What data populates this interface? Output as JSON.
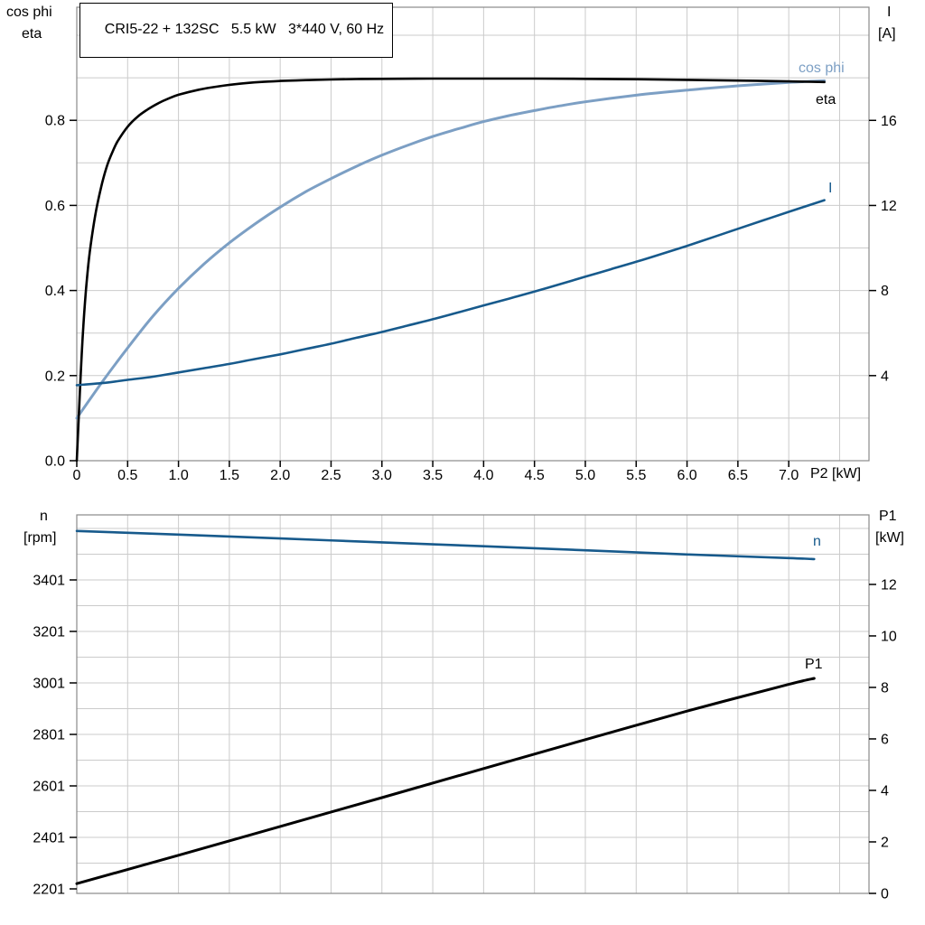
{
  "title": "CRI5-22 + 132SC   5.5 kW   3*440 V, 60 Hz",
  "colors": {
    "grid": "#cbcbcb",
    "frame": "#8a8a8a",
    "tick": "#000000",
    "text": "#000000",
    "cos_phi": "#7c9fc4",
    "eta": "#000000",
    "current": "#175a8c",
    "speed": "#175a8c",
    "p1": "#000000",
    "background": "#ffffff"
  },
  "chart_data": [
    {
      "type": "line",
      "panel": "top",
      "title": "CRI5-22 + 132SC   5.5 kW   3*440 V, 60 Hz",
      "x_axis": {
        "label": "P2 [kW]",
        "range": [
          0,
          7.789
        ],
        "grid_values": [
          0.5,
          1,
          1.5,
          2,
          2.5,
          3,
          3.5,
          4,
          4.5,
          5,
          5.5,
          6,
          6.5,
          7,
          7.5
        ],
        "tick_values": [
          0,
          0.5,
          1,
          1.5,
          2,
          2.5,
          3,
          3.5,
          4,
          4.5,
          5,
          5.5,
          6,
          6.5,
          7
        ],
        "tick_labels": [
          "0",
          "0.5",
          "1.0",
          "1.5",
          "2.0",
          "2.5",
          "3.0",
          "3.5",
          "4.0",
          "4.5",
          "5.0",
          "5.5",
          "6.0",
          "6.5",
          "7.0"
        ],
        "show_tick_labels": true
      },
      "y_left": {
        "title_lines": [
          "cos phi",
          "eta"
        ],
        "range": [
          0,
          1.0658
        ],
        "grid_values": [
          0.1,
          0.2,
          0.3,
          0.4,
          0.5,
          0.6,
          0.7,
          0.8,
          0.9,
          1.0
        ],
        "tick_values": [
          0,
          0.2,
          0.4,
          0.6,
          0.8
        ],
        "tick_labels": [
          "0.0",
          "0.2",
          "0.4",
          "0.6",
          "0.8"
        ]
      },
      "y_right": {
        "title_lines": [
          "I",
          "[A]"
        ],
        "range": [
          0,
          21.32
        ],
        "tick_values": [
          4,
          8,
          12,
          16
        ],
        "tick_labels": [
          "4",
          "8",
          "12",
          "16"
        ]
      },
      "series": [
        {
          "name": "cos phi",
          "axis": "left",
          "color": "#7c9fc4",
          "width": 3,
          "points": [
            [
              0,
              0.1
            ],
            [
              0.25,
              0.185
            ],
            [
              0.5,
              0.265
            ],
            [
              0.75,
              0.34
            ],
            [
              1.0,
              0.405
            ],
            [
              1.25,
              0.462
            ],
            [
              1.5,
              0.512
            ],
            [
              1.75,
              0.556
            ],
            [
              2.0,
              0.596
            ],
            [
              2.25,
              0.632
            ],
            [
              2.5,
              0.663
            ],
            [
              2.75,
              0.692
            ],
            [
              3.0,
              0.718
            ],
            [
              3.25,
              0.741
            ],
            [
              3.5,
              0.762
            ],
            [
              3.75,
              0.78
            ],
            [
              4.0,
              0.797
            ],
            [
              4.25,
              0.811
            ],
            [
              4.5,
              0.823
            ],
            [
              4.75,
              0.834
            ],
            [
              5.0,
              0.8435
            ],
            [
              5.5,
              0.859
            ],
            [
              6.0,
              0.871
            ],
            [
              6.5,
              0.881
            ],
            [
              7.0,
              0.889
            ],
            [
              7.35,
              0.893
            ]
          ]
        },
        {
          "name": "eta",
          "axis": "left",
          "color": "#000000",
          "width": 2.6,
          "points": [
            [
              0,
              0
            ],
            [
              0.03,
              0.16
            ],
            [
              0.06,
              0.3
            ],
            [
              0.09,
              0.4
            ],
            [
              0.12,
              0.475
            ],
            [
              0.16,
              0.545
            ],
            [
              0.2,
              0.6
            ],
            [
              0.25,
              0.653
            ],
            [
              0.3,
              0.695
            ],
            [
              0.35,
              0.725
            ],
            [
              0.4,
              0.75
            ],
            [
              0.5,
              0.785
            ],
            [
              0.6,
              0.809
            ],
            [
              0.7,
              0.826
            ],
            [
              0.8,
              0.84
            ],
            [
              0.9,
              0.851
            ],
            [
              1.0,
              0.86
            ],
            [
              1.2,
              0.872
            ],
            [
              1.4,
              0.88
            ],
            [
              1.6,
              0.886
            ],
            [
              1.8,
              0.89
            ],
            [
              2.0,
              0.8925
            ],
            [
              2.25,
              0.8945
            ],
            [
              2.5,
              0.896
            ],
            [
              2.75,
              0.897
            ],
            [
              3.0,
              0.8975
            ],
            [
              3.5,
              0.898
            ],
            [
              4.0,
              0.898
            ],
            [
              4.5,
              0.898
            ],
            [
              5.0,
              0.8975
            ],
            [
              5.5,
              0.8965
            ],
            [
              6.0,
              0.895
            ],
            [
              6.5,
              0.8935
            ],
            [
              7.0,
              0.8915
            ],
            [
              7.35,
              0.89
            ]
          ]
        },
        {
          "name": "I",
          "axis": "right",
          "color": "#175a8c",
          "width": 2.6,
          "points": [
            [
              0,
              3.55
            ],
            [
              0.25,
              3.65
            ],
            [
              0.5,
              3.8
            ],
            [
              0.75,
              3.95
            ],
            [
              1.0,
              4.15
            ],
            [
              1.25,
              4.35
            ],
            [
              1.5,
              4.55
            ],
            [
              1.75,
              4.78
            ],
            [
              2.0,
              5.0
            ],
            [
              2.25,
              5.25
            ],
            [
              2.5,
              5.5
            ],
            [
              2.75,
              5.78
            ],
            [
              3.0,
              6.05
            ],
            [
              3.25,
              6.35
            ],
            [
              3.5,
              6.65
            ],
            [
              3.75,
              6.97
            ],
            [
              4.0,
              7.3
            ],
            [
              4.25,
              7.62
            ],
            [
              4.5,
              7.95
            ],
            [
              4.75,
              8.3
            ],
            [
              5.0,
              8.65
            ],
            [
              5.25,
              9.0
            ],
            [
              5.5,
              9.35
            ],
            [
              5.75,
              9.72
            ],
            [
              6.0,
              10.1
            ],
            [
              6.25,
              10.5
            ],
            [
              6.5,
              10.9
            ],
            [
              6.75,
              11.3
            ],
            [
              7.0,
              11.7
            ],
            [
              7.35,
              12.25
            ]
          ]
        }
      ]
    },
    {
      "type": "line",
      "panel": "bottom",
      "x_axis": {
        "label": "",
        "range": [
          0,
          7.789
        ],
        "grid_values": [
          0.5,
          1,
          1.5,
          2,
          2.5,
          3,
          3.5,
          4,
          4.5,
          5,
          5.5,
          6,
          6.5,
          7,
          7.5
        ],
        "tick_values": [],
        "tick_labels": [],
        "show_tick_labels": false
      },
      "y_left": {
        "title_lines": [
          "n",
          "[rpm]"
        ],
        "range": [
          2183.5,
          3653.6
        ],
        "grid_values": [
          2301,
          2401,
          2501,
          2601,
          2701,
          2801,
          2901,
          3001,
          3101,
          3201,
          3301,
          3401,
          3501,
          3601
        ],
        "tick_values": [
          2201,
          2401,
          2601,
          2801,
          3001,
          3201,
          3401
        ],
        "tick_labels": [
          "2201",
          "2401",
          "2601",
          "2801",
          "3001",
          "3201",
          "3401"
        ]
      },
      "y_right": {
        "title_lines": [
          "P1",
          "[kW]"
        ],
        "range": [
          0,
          14.7
        ],
        "tick_values": [
          0,
          2,
          4,
          6,
          8,
          10,
          12
        ],
        "tick_labels": [
          "0",
          "2",
          "4",
          "6",
          "8",
          "10",
          "12"
        ]
      },
      "series": [
        {
          "name": "n",
          "axis": "left",
          "color": "#175a8c",
          "width": 2.6,
          "points": [
            [
              0,
              3591
            ],
            [
              1,
              3577
            ],
            [
              2,
              3562
            ],
            [
              3,
              3547
            ],
            [
              4,
              3532
            ],
            [
              5,
              3516
            ],
            [
              6,
              3500
            ],
            [
              7,
              3486
            ],
            [
              7.25,
              3482
            ]
          ]
        },
        {
          "name": "P1",
          "axis": "right",
          "color": "#000000",
          "width": 3,
          "points": [
            [
              0,
              0.38
            ],
            [
              1,
              1.48
            ],
            [
              2,
              2.6
            ],
            [
              3,
              3.72
            ],
            [
              4,
              4.85
            ],
            [
              5,
              5.97
            ],
            [
              6,
              7.08
            ],
            [
              7,
              8.12
            ],
            [
              7.25,
              8.35
            ]
          ]
        }
      ]
    }
  ]
}
